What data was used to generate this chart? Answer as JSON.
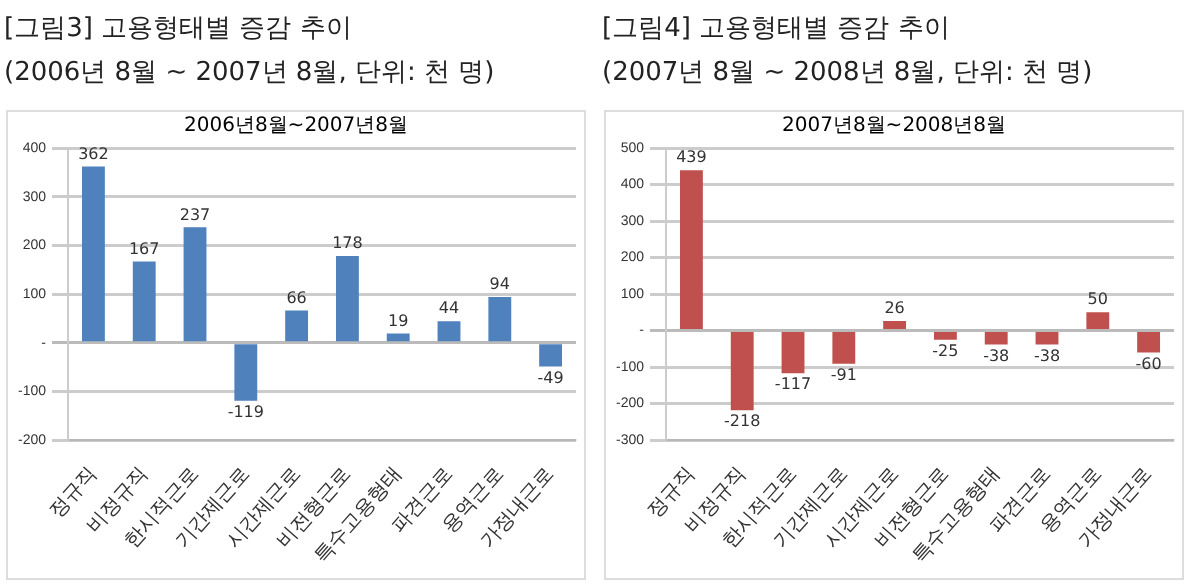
{
  "chart_data": [
    {
      "type": "bar",
      "title": "[그림3] 고용형태별 증감 추이",
      "subtitle": "(2006년 8월 ~ 2007년 8월, 단위: 천 명)",
      "annotations": [
        "2006년8월~2007년8월"
      ],
      "categories": [
        "정규직",
        "비정규직",
        "한시적근로",
        "기간제근로",
        "시간제근로",
        "비전형근로",
        "특수고용형태",
        "파견근로",
        "용역근로",
        "가정내근로"
      ],
      "values": [
        362,
        167,
        237,
        -119,
        66,
        178,
        19,
        44,
        94,
        -49
      ],
      "color": "#4f81bd",
      "ylim": [
        -200,
        400
      ],
      "yticks": [
        -200,
        -100,
        {
          "value": 0,
          "label": "-"
        },
        100,
        200,
        300,
        400
      ],
      "grid": "y",
      "legend": false,
      "data_labels": true
    },
    {
      "type": "bar",
      "title": "[그림4] 고용형태별 증감 추이",
      "subtitle": "(2007년 8월 ~ 2008년 8월, 단위: 천 명)",
      "annotations": [
        "2007년8월~2008년8월"
      ],
      "categories": [
        "정규직",
        "비정규직",
        "한시적근로",
        "기간제근로",
        "시간제근로",
        "비전형근로",
        "특수고용형태",
        "파견근로",
        "용역근로",
        "가정내근로"
      ],
      "values": [
        439,
        -218,
        -117,
        -91,
        26,
        -25,
        -38,
        -38,
        50,
        -60
      ],
      "color": "#c0504d",
      "ylim": [
        -300,
        500
      ],
      "yticks": [
        -300,
        -200,
        -100,
        {
          "value": 0,
          "label": "-"
        },
        100,
        200,
        300,
        400,
        500
      ],
      "grid": "y",
      "legend": false,
      "data_labels": true
    }
  ]
}
